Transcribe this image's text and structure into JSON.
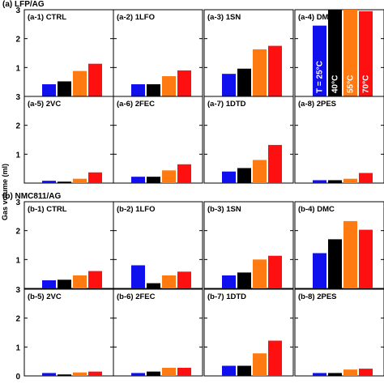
{
  "colors": [
    "#1010ee",
    "#000000",
    "#ff7a10",
    "#ff1010"
  ],
  "chart_data": {
    "type": "bar",
    "ylabel": "Gas volume (ml)",
    "ylim": [
      0,
      3
    ],
    "yticks": [
      "0",
      "1",
      "2",
      "3"
    ],
    "legend": {
      "panel": "(a-4) DMC",
      "series": [
        "T = 25°C",
        "40°C",
        "55°C",
        "70°C"
      ]
    },
    "sections": [
      {
        "title": "(a) LFP/AG",
        "panels": [
          {
            "label": "(a-1) CTRL",
            "values": [
              0.42,
              0.52,
              0.88,
              1.13
            ]
          },
          {
            "label": "(a-2) 1LFO",
            "values": [
              0.42,
              0.42,
              0.7,
              0.9
            ]
          },
          {
            "label": "(a-3) 1SN",
            "values": [
              0.78,
              0.96,
              1.63,
              1.75
            ]
          },
          {
            "label": "(a-4) DMC",
            "values": [
              2.45,
              3.1,
              3.0,
              2.95
            ]
          },
          {
            "label": "(a-5) 2VC",
            "values": [
              0.08,
              0.05,
              0.15,
              0.37
            ]
          },
          {
            "label": "(a-6) 2FEC",
            "values": [
              0.22,
              0.22,
              0.44,
              0.65
            ]
          },
          {
            "label": "(a-7) 1DTD",
            "values": [
              0.4,
              0.52,
              0.8,
              1.32
            ]
          },
          {
            "label": "(a-8) 2PES",
            "values": [
              0.1,
              0.1,
              0.15,
              0.35
            ]
          }
        ]
      },
      {
        "title": "(b) NMC811/AG",
        "panels": [
          {
            "label": "(b-1) CTRL",
            "values": [
              0.28,
              0.3,
              0.45,
              0.6
            ]
          },
          {
            "label": "(b-2) 1LFO",
            "values": [
              0.8,
              0.18,
              0.45,
              0.58
            ]
          },
          {
            "label": "(b-3) 1SN",
            "values": [
              0.45,
              0.55,
              1.0,
              1.13
            ]
          },
          {
            "label": "(b-4) DMC",
            "values": [
              1.22,
              1.7,
              2.33,
              2.03
            ]
          },
          {
            "label": "(b-5) 2VC",
            "values": [
              0.1,
              0.05,
              0.12,
              0.15
            ]
          },
          {
            "label": "(b-6) 2FEC",
            "values": [
              0.1,
              0.15,
              0.28,
              0.28
            ]
          },
          {
            "label": "(b-7) 1DTD",
            "values": [
              0.35,
              0.35,
              0.78,
              1.22
            ]
          },
          {
            "label": "(b-8) 2PES",
            "values": [
              0.1,
              0.1,
              0.22,
              0.25
            ]
          }
        ]
      }
    ]
  }
}
